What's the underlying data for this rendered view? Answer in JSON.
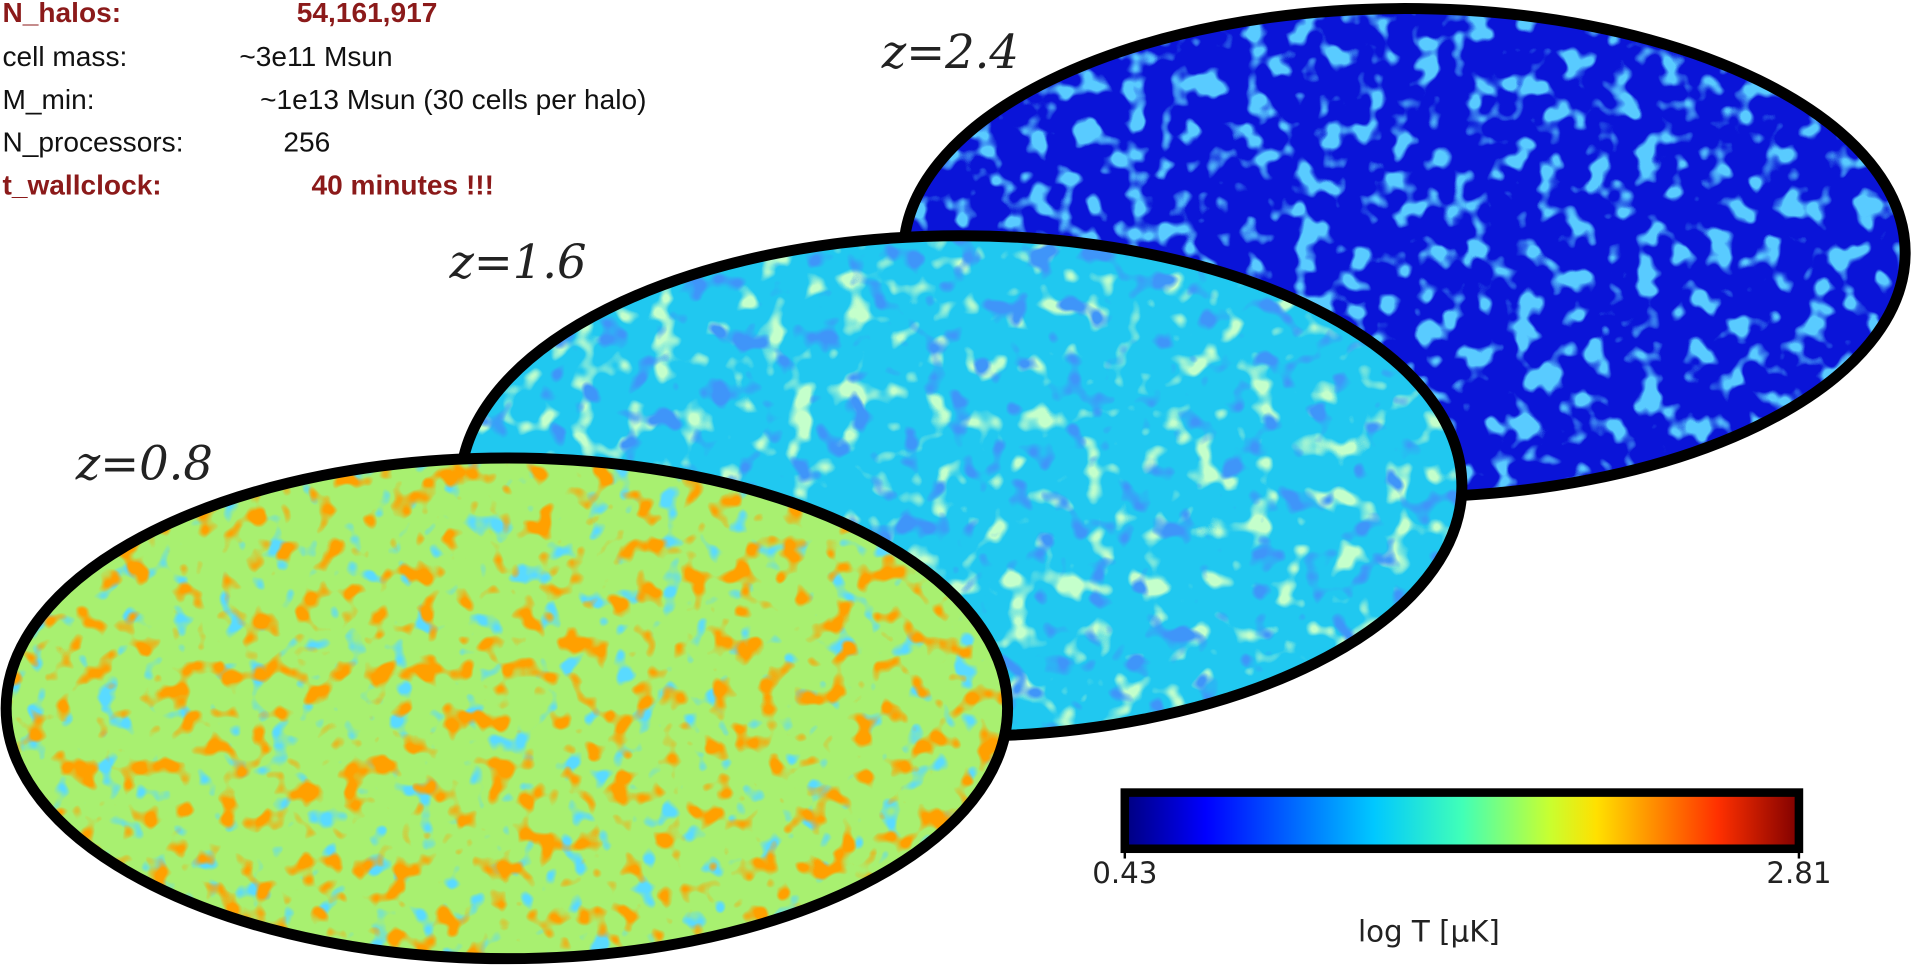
{
  "info": [
    {
      "label": "N_halos:",
      "value": "54,161,917"
    },
    {
      "label": "cell mass:",
      "value": "~3e11 Msun"
    },
    {
      "label": "M_min:",
      "value": "~1e13 Msun (30 cells per halo)"
    },
    {
      "label": "N_processors:",
      "value": "256"
    },
    {
      "label": "t_wallclock:",
      "value": "40 minutes !!!"
    }
  ],
  "maps": [
    {
      "label": "z=2.4"
    },
    {
      "label": "z=1.6"
    },
    {
      "label": "z=0.8"
    }
  ],
  "colorbar": {
    "min": 0.43,
    "max": 2.81,
    "label": "log T  [μK]"
  }
}
